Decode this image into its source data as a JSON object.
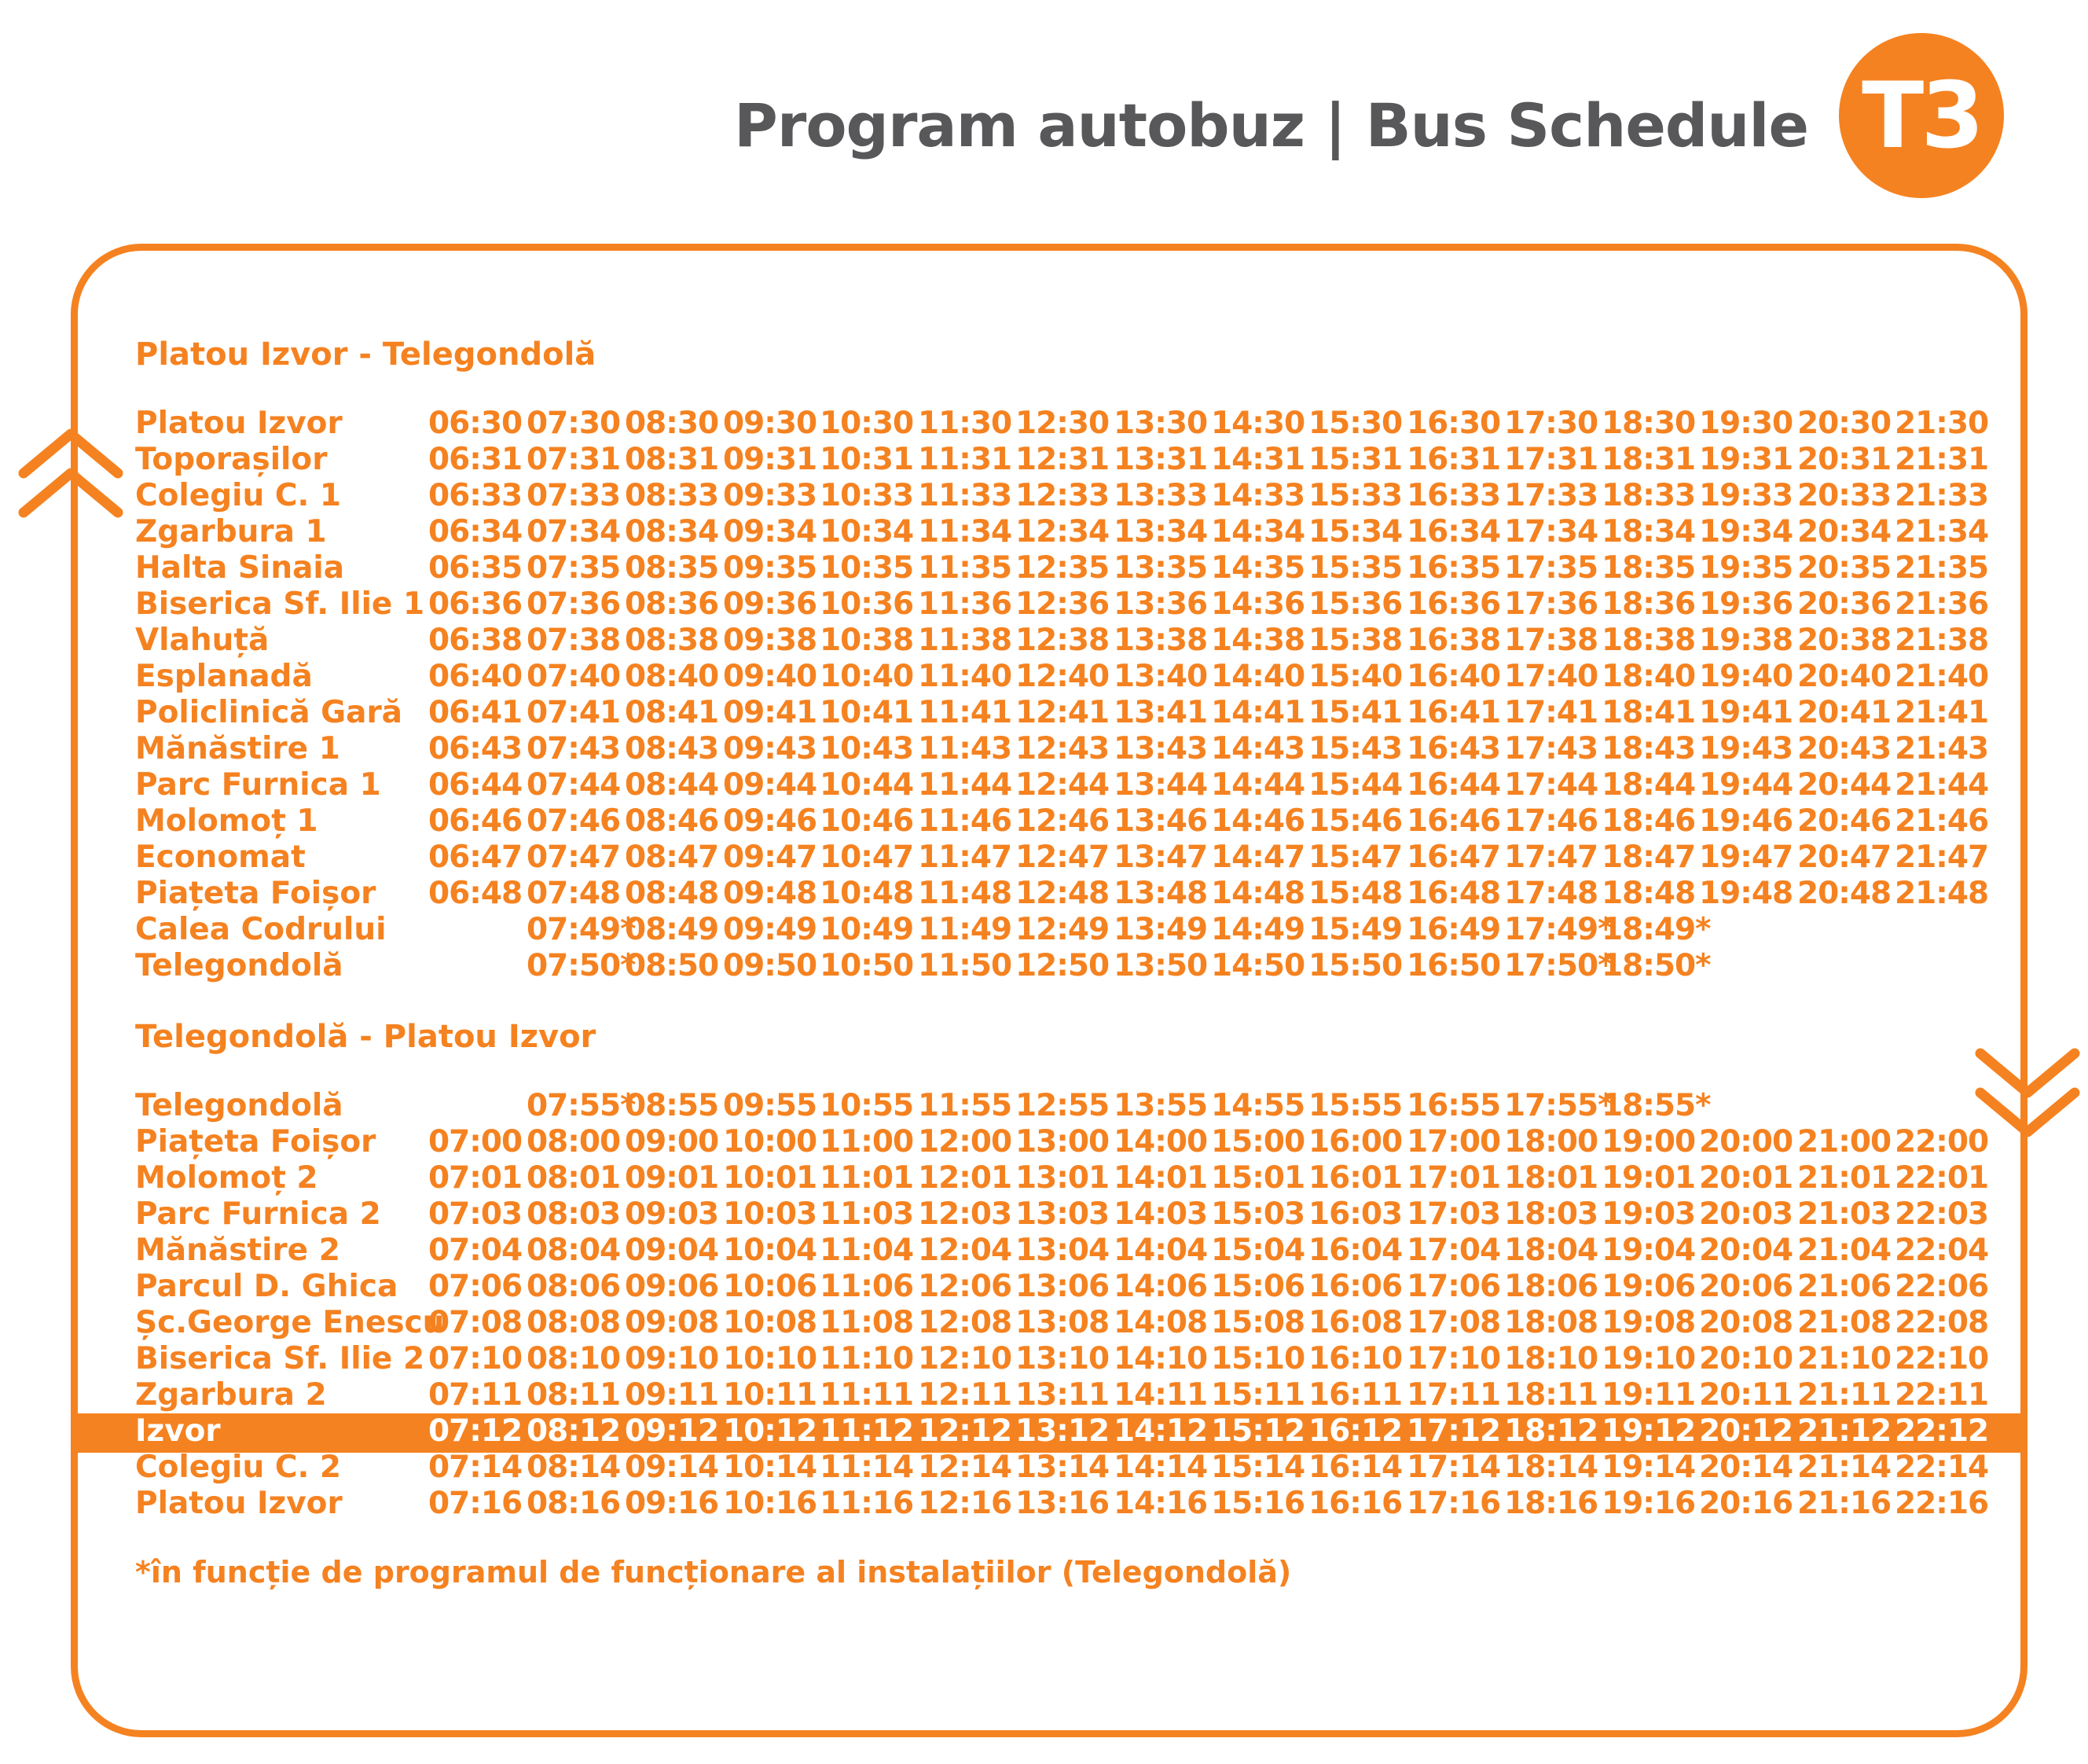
{
  "header": {
    "title": "Program autobuz | Bus Schedule",
    "badge": "T3"
  },
  "colors": {
    "accent": "#f58220",
    "title": "#58585a",
    "highlight_text": "#ffffff"
  },
  "icons": {
    "up_arrow": "double-chevron-up-icon",
    "down_arrow": "double-chevron-down-icon"
  },
  "sections": [
    {
      "title": "Platou Izvor - Telegondolă",
      "rows": [
        {
          "stop": "Platou Izvor",
          "times": [
            "06:30",
            "07:30",
            "08:30",
            "09:30",
            "10:30",
            "11:30",
            "12:30",
            "13:30",
            "14:30",
            "15:30",
            "16:30",
            "17:30",
            "18:30",
            "19:30",
            "20:30",
            "21:30"
          ]
        },
        {
          "stop": "Toporașilor",
          "times": [
            "06:31",
            "07:31",
            "08:31",
            "09:31",
            "10:31",
            "11:31",
            "12:31",
            "13:31",
            "14:31",
            "15:31",
            "16:31",
            "17:31",
            "18:31",
            "19:31",
            "20:31",
            "21:31"
          ]
        },
        {
          "stop": "Colegiu C. 1",
          "times": [
            "06:33",
            "07:33",
            "08:33",
            "09:33",
            "10:33",
            "11:33",
            "12:33",
            "13:33",
            "14:33",
            "15:33",
            "16:33",
            "17:33",
            "18:33",
            "19:33",
            "20:33",
            "21:33"
          ]
        },
        {
          "stop": "Zgarbura 1",
          "times": [
            "06:34",
            "07:34",
            "08:34",
            "09:34",
            "10:34",
            "11:34",
            "12:34",
            "13:34",
            "14:34",
            "15:34",
            "16:34",
            "17:34",
            "18:34",
            "19:34",
            "20:34",
            "21:34"
          ]
        },
        {
          "stop": "Halta Sinaia",
          "times": [
            "06:35",
            "07:35",
            "08:35",
            "09:35",
            "10:35",
            "11:35",
            "12:35",
            "13:35",
            "14:35",
            "15:35",
            "16:35",
            "17:35",
            "18:35",
            "19:35",
            "20:35",
            "21:35"
          ]
        },
        {
          "stop": "Biserica Sf. Ilie 1",
          "times": [
            "06:36",
            "07:36",
            "08:36",
            "09:36",
            "10:36",
            "11:36",
            "12:36",
            "13:36",
            "14:36",
            "15:36",
            "16:36",
            "17:36",
            "18:36",
            "19:36",
            "20:36",
            "21:36"
          ]
        },
        {
          "stop": "Vlahuță",
          "times": [
            "06:38",
            "07:38",
            "08:38",
            "09:38",
            "10:38",
            "11:38",
            "12:38",
            "13:38",
            "14:38",
            "15:38",
            "16:38",
            "17:38",
            "18:38",
            "19:38",
            "20:38",
            "21:38"
          ]
        },
        {
          "stop": "Esplanadă",
          "times": [
            "06:40",
            "07:40",
            "08:40",
            "09:40",
            "10:40",
            "11:40",
            "12:40",
            "13:40",
            "14:40",
            "15:40",
            "16:40",
            "17:40",
            "18:40",
            "19:40",
            "20:40",
            "21:40"
          ]
        },
        {
          "stop": "Policlinică Gară",
          "times": [
            "06:41",
            "07:41",
            "08:41",
            "09:41",
            "10:41",
            "11:41",
            "12:41",
            "13:41",
            "14:41",
            "15:41",
            "16:41",
            "17:41",
            "18:41",
            "19:41",
            "20:41",
            "21:41"
          ]
        },
        {
          "stop": "Mănăstire 1",
          "times": [
            "06:43",
            "07:43",
            "08:43",
            "09:43",
            "10:43",
            "11:43",
            "12:43",
            "13:43",
            "14:43",
            "15:43",
            "16:43",
            "17:43",
            "18:43",
            "19:43",
            "20:43",
            "21:43"
          ]
        },
        {
          "stop": "Parc Furnica 1",
          "times": [
            "06:44",
            "07:44",
            "08:44",
            "09:44",
            "10:44",
            "11:44",
            "12:44",
            "13:44",
            "14:44",
            "15:44",
            "16:44",
            "17:44",
            "18:44",
            "19:44",
            "20:44",
            "21:44"
          ]
        },
        {
          "stop": "Molomoț 1",
          "times": [
            "06:46",
            "07:46",
            "08:46",
            "09:46",
            "10:46",
            "11:46",
            "12:46",
            "13:46",
            "14:46",
            "15:46",
            "16:46",
            "17:46",
            "18:46",
            "19:46",
            "20:46",
            "21:46"
          ]
        },
        {
          "stop": "Economat",
          "times": [
            "06:47",
            "07:47",
            "08:47",
            "09:47",
            "10:47",
            "11:47",
            "12:47",
            "13:47",
            "14:47",
            "15:47",
            "16:47",
            "17:47",
            "18:47",
            "19:47",
            "20:47",
            "21:47"
          ]
        },
        {
          "stop": "Piațeta Foișor",
          "times": [
            "06:48",
            "07:48",
            "08:48",
            "09:48",
            "10:48",
            "11:48",
            "12:48",
            "13:48",
            "14:48",
            "15:48",
            "16:48",
            "17:48",
            "18:48",
            "19:48",
            "20:48",
            "21:48"
          ]
        },
        {
          "stop": "Calea Codrului",
          "times": [
            "",
            "07:49*",
            "08:49",
            "09:49",
            "10:49",
            "11:49",
            "12:49",
            "13:49",
            "14:49",
            "15:49",
            "16:49",
            "17:49*",
            "18:49*",
            "",
            "",
            ""
          ]
        },
        {
          "stop": "Telegondolă",
          "times": [
            "",
            "07:50*",
            "08:50",
            "09:50",
            "10:50",
            "11:50",
            "12:50",
            "13:50",
            "14:50",
            "15:50",
            "16:50",
            "17:50*",
            "18:50*",
            "",
            "",
            ""
          ]
        }
      ]
    },
    {
      "title": "Telegondolă - Platou Izvor",
      "rows": [
        {
          "stop": "Telegondolă",
          "times": [
            "",
            "07:55*",
            "08:55",
            "09:55",
            "10:55",
            "11:55",
            "12:55",
            "13:55",
            "14:55",
            "15:55",
            "16:55",
            "17:55*",
            "18:55*",
            "",
            "",
            ""
          ]
        },
        {
          "stop": "Piațeta Foișor",
          "times": [
            "07:00",
            "08:00",
            "09:00",
            "10:00",
            "11:00",
            "12:00",
            "13:00",
            "14:00",
            "15:00",
            "16:00",
            "17:00",
            "18:00",
            "19:00",
            "20:00",
            "21:00",
            "22:00"
          ]
        },
        {
          "stop": "Molomoț 2",
          "times": [
            "07:01",
            "08:01",
            "09:01",
            "10:01",
            "11:01",
            "12:01",
            "13:01",
            "14:01",
            "15:01",
            "16:01",
            "17:01",
            "18:01",
            "19:01",
            "20:01",
            "21:01",
            "22:01"
          ]
        },
        {
          "stop": "Parc Furnica 2",
          "times": [
            "07:03",
            "08:03",
            "09:03",
            "10:03",
            "11:03",
            "12:03",
            "13:03",
            "14:03",
            "15:03",
            "16:03",
            "17:03",
            "18:03",
            "19:03",
            "20:03",
            "21:03",
            "22:03"
          ]
        },
        {
          "stop": "Mănăstire 2",
          "times": [
            "07:04",
            "08:04",
            "09:04",
            "10:04",
            "11:04",
            "12:04",
            "13:04",
            "14:04",
            "15:04",
            "16:04",
            "17:04",
            "18:04",
            "19:04",
            "20:04",
            "21:04",
            "22:04"
          ]
        },
        {
          "stop": "Parcul D. Ghica",
          "times": [
            "07:06",
            "08:06",
            "09:06",
            "10:06",
            "11:06",
            "12:06",
            "13:06",
            "14:06",
            "15:06",
            "16:06",
            "17:06",
            "18:06",
            "19:06",
            "20:06",
            "21:06",
            "22:06"
          ]
        },
        {
          "stop": "Șc.George Enescu",
          "times": [
            "07:08",
            "08:08",
            "09:08",
            "10:08",
            "11:08",
            "12:08",
            "13:08",
            "14:08",
            "15:08",
            "16:08",
            "17:08",
            "18:08",
            "19:08",
            "20:08",
            "21:08",
            "22:08"
          ]
        },
        {
          "stop": "Biserica Sf. Ilie 2",
          "times": [
            "07:10",
            "08:10",
            "09:10",
            "10:10",
            "11:10",
            "12:10",
            "13:10",
            "14:10",
            "15:10",
            "16:10",
            "17:10",
            "18:10",
            "19:10",
            "20:10",
            "21:10",
            "22:10"
          ]
        },
        {
          "stop": "Zgarbura 2",
          "times": [
            "07:11",
            "08:11",
            "09:11",
            "10:11",
            "11:11",
            "12:11",
            "13:11",
            "14:11",
            "15:11",
            "16:11",
            "17:11",
            "18:11",
            "19:11",
            "20:11",
            "21:11",
            "22:11"
          ]
        },
        {
          "stop": "Izvor",
          "highlight": true,
          "times": [
            "07:12",
            "08:12",
            "09:12",
            "10:12",
            "11:12",
            "12:12",
            "13:12",
            "14:12",
            "15:12",
            "16:12",
            "17:12",
            "18:12",
            "19:12",
            "20:12",
            "21:12",
            "22:12"
          ]
        },
        {
          "stop": "Colegiu C. 2",
          "times": [
            "07:14",
            "08:14",
            "09:14",
            "10:14",
            "11:14",
            "12:14",
            "13:14",
            "14:14",
            "15:14",
            "16:14",
            "17:14",
            "18:14",
            "19:14",
            "20:14",
            "21:14",
            "22:14"
          ]
        },
        {
          "stop": "Platou Izvor",
          "times": [
            "07:16",
            "08:16",
            "09:16",
            "10:16",
            "11:16",
            "12:16",
            "13:16",
            "14:16",
            "15:16",
            "16:16",
            "17:16",
            "18:16",
            "19:16",
            "20:16",
            "21:16",
            "22:16"
          ]
        }
      ]
    }
  ],
  "footnote": "*în funcție de programul de funcționare al instalațiilor (Telegondolă)"
}
